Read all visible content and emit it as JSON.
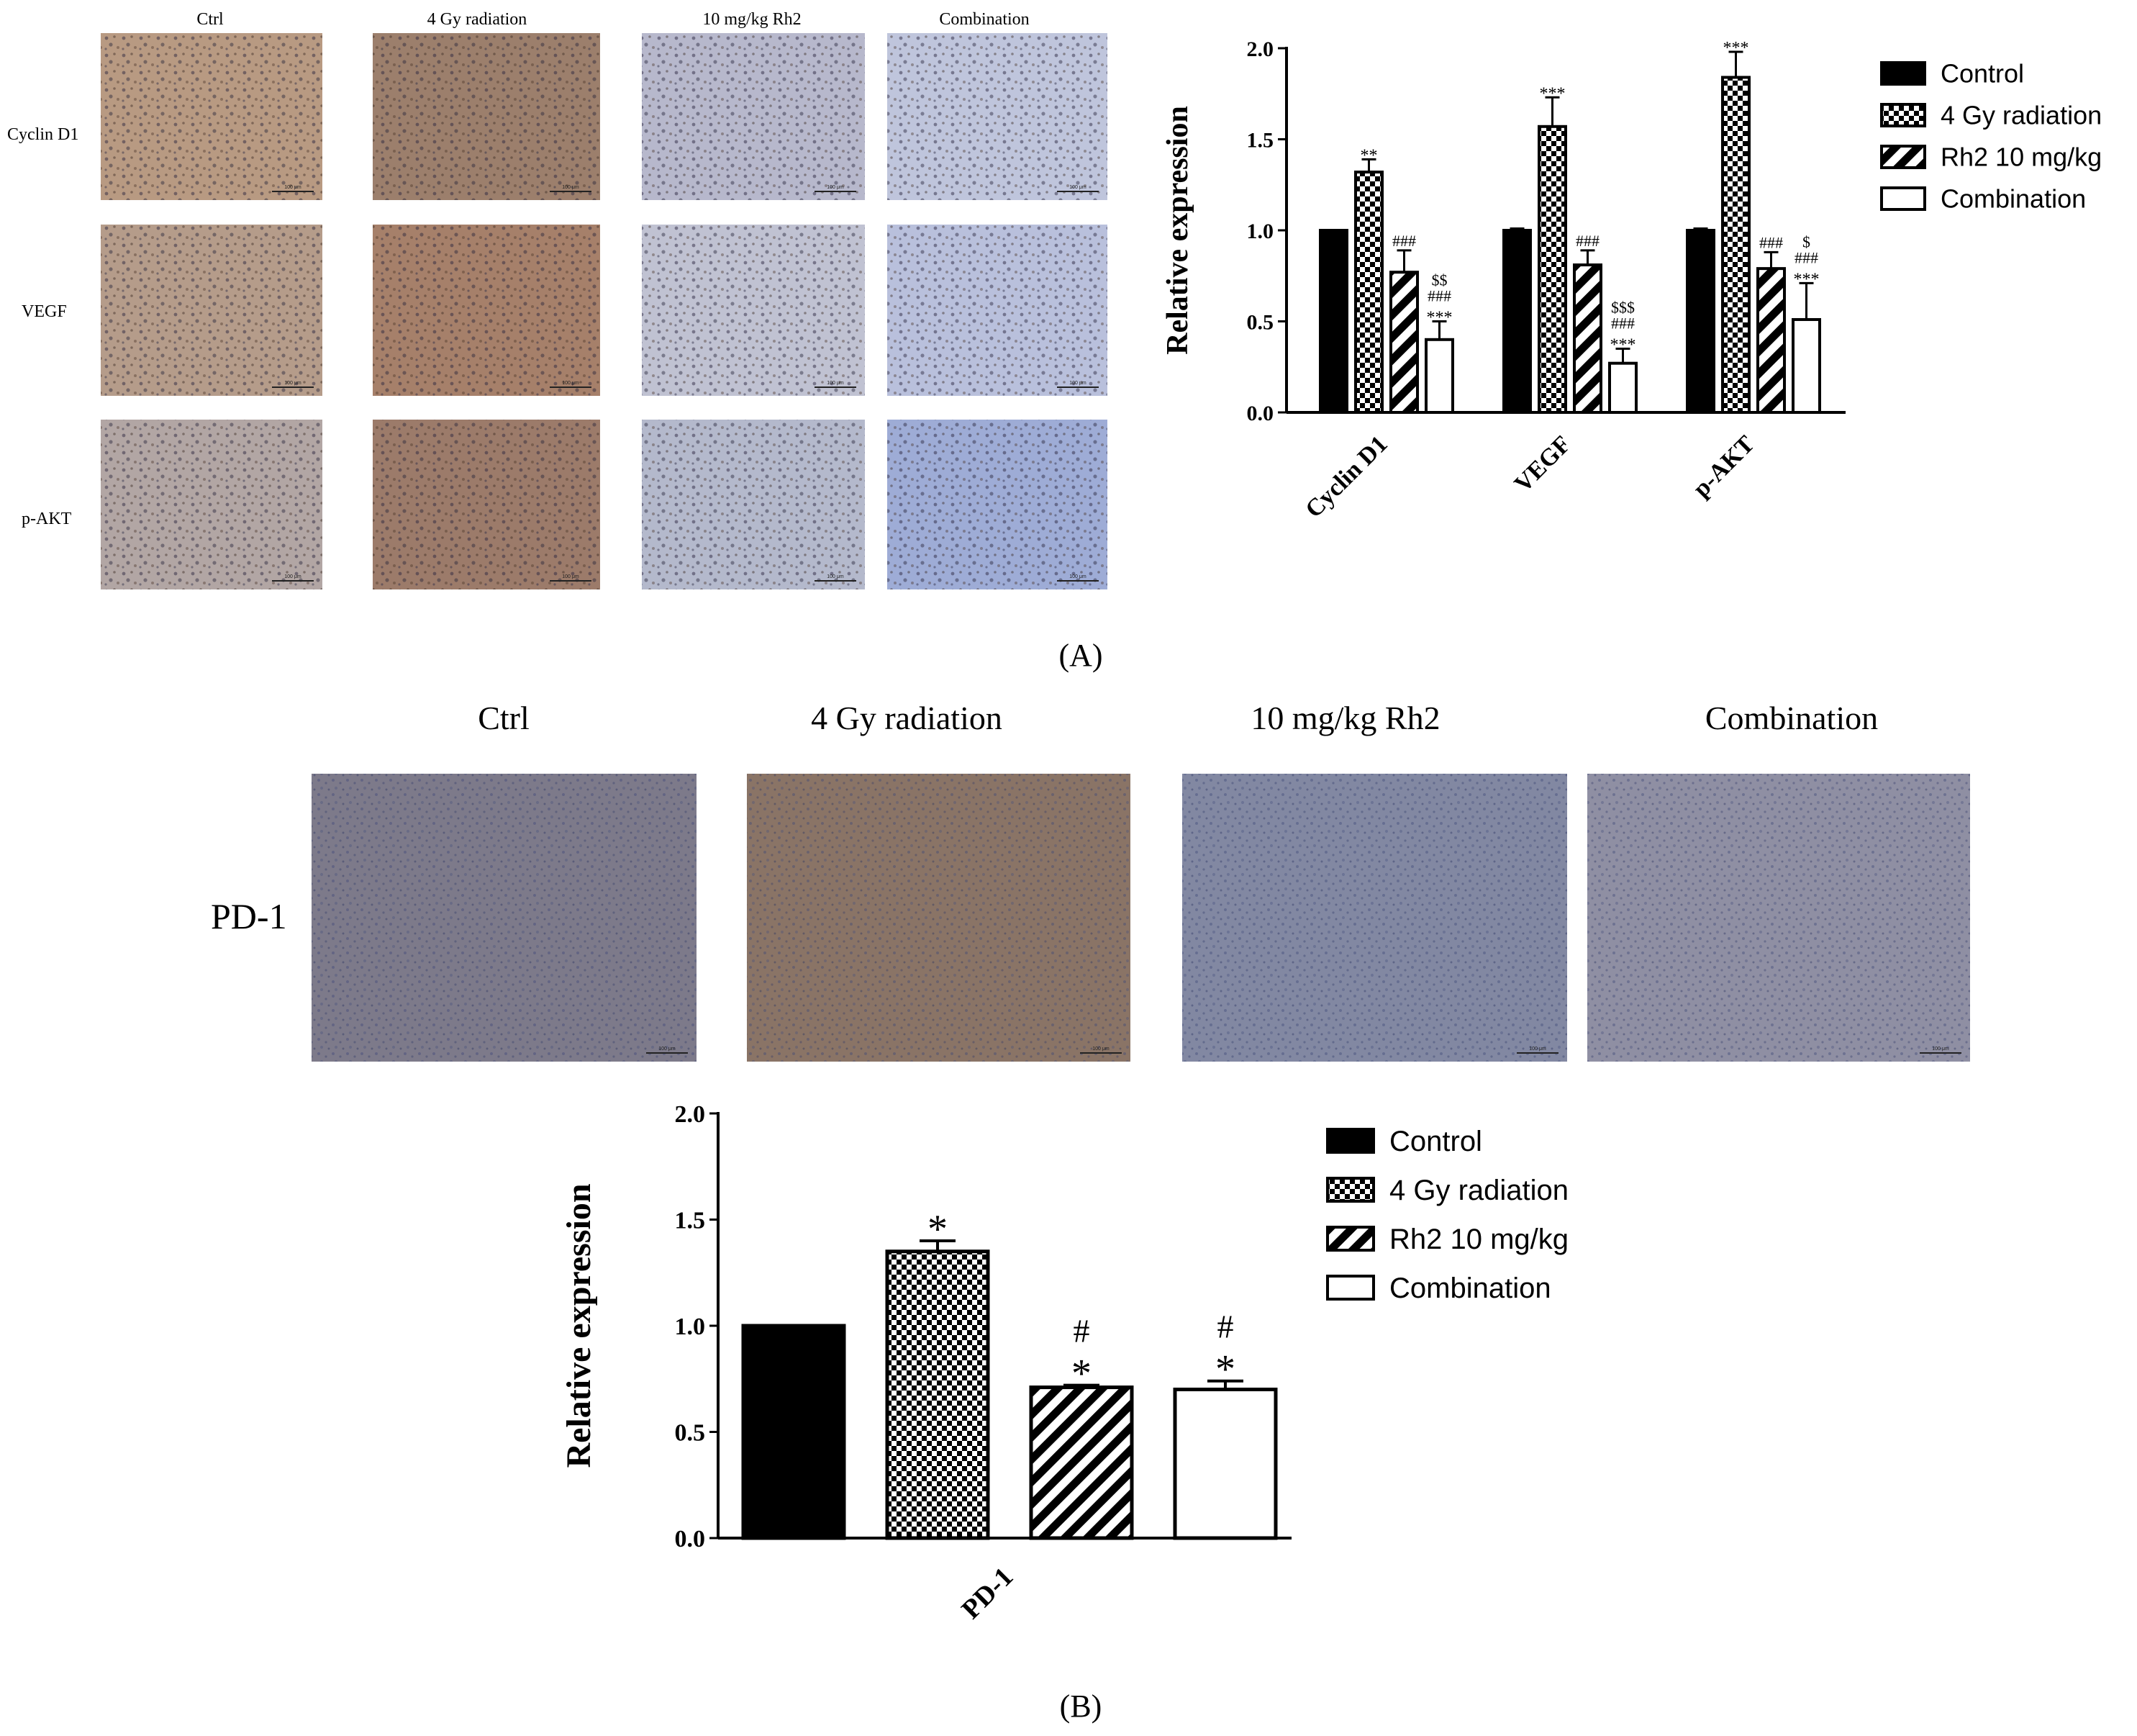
{
  "panel_a": {
    "column_headers": [
      "Ctrl",
      "4 Gy radiation",
      "10 mg/kg Rh2",
      "Combination"
    ],
    "row_labels": [
      "Cyclin D1",
      "VEGF",
      "p-AKT"
    ],
    "label": "(A)",
    "scale_bar_text": "100 μm",
    "micrograph_tones": [
      [
        "#b89a82",
        "#9c7f6c",
        "#b7b8cc",
        "#bfc5dc"
      ],
      [
        "#b59c8a",
        "#a6806a",
        "#c0c2d2",
        "#b9c0dc"
      ],
      [
        "#b2a6a4",
        "#9c7b6a",
        "#b4b9cc",
        "#9eacd6"
      ]
    ]
  },
  "panel_b": {
    "column_headers": [
      "Ctrl",
      "4 Gy radiation",
      "10 mg/kg Rh2",
      "Combination"
    ],
    "row_labels": [
      "PD-1"
    ],
    "label": "(B)",
    "scale_bar_text": "100 μm",
    "micrograph_tones": [
      [
        "#7d7a8a",
        "#8a7466",
        "#8288a2",
        "#8f8fa3"
      ]
    ]
  },
  "legend_items": [
    {
      "label": "Control",
      "pattern": "solid"
    },
    {
      "label": "4 Gy radiation",
      "pattern": "checker"
    },
    {
      "label": "Rh2 10 mg/kg",
      "pattern": "diagonal"
    },
    {
      "label": "Combination",
      "pattern": "open"
    }
  ],
  "chart_data": [
    {
      "type": "bar",
      "ylabel": "Relative expression",
      "ylim": [
        0,
        2.0
      ],
      "yticks": [
        "0.0",
        "0.5",
        "1.0",
        "1.5",
        "2.0"
      ],
      "categories": [
        "Cyclin D1",
        "VEGF",
        "p-AKT"
      ],
      "series": [
        {
          "name": "Control",
          "values": [
            1.0,
            1.0,
            1.0
          ],
          "errors": [
            0.0,
            0.01,
            0.01
          ],
          "annotations": [
            "",
            "",
            ""
          ]
        },
        {
          "name": "4 Gy radiation",
          "values": [
            1.32,
            1.57,
            1.84
          ],
          "errors": [
            0.07,
            0.16,
            0.14
          ],
          "annotations": [
            "**",
            "***",
            "***"
          ]
        },
        {
          "name": "Rh2 10 mg/kg",
          "values": [
            0.77,
            0.81,
            0.79
          ],
          "errors": [
            0.12,
            0.08,
            0.09
          ],
          "annotations": [
            "###",
            "###",
            "###"
          ]
        },
        {
          "name": "Combination",
          "values": [
            0.4,
            0.27,
            0.51
          ],
          "errors": [
            0.1,
            0.08,
            0.2
          ],
          "annotations": [
            "$$\n###\n***",
            "$$$\n###\n***",
            "$\n###\n***"
          ]
        }
      ],
      "legend": "right",
      "grid": false
    },
    {
      "type": "bar",
      "ylabel": "Relative expression",
      "ylim": [
        0,
        2.0
      ],
      "yticks": [
        "0.0",
        "0.5",
        "1.0",
        "1.5",
        "2.0"
      ],
      "categories": [
        "PD-1"
      ],
      "series": [
        {
          "name": "Control",
          "values": [
            1.0
          ],
          "errors": [
            0.0
          ],
          "annotations": [
            ""
          ]
        },
        {
          "name": "4 Gy radiation",
          "values": [
            1.35
          ],
          "errors": [
            0.05
          ],
          "annotations": [
            "*"
          ]
        },
        {
          "name": "Rh2 10 mg/kg",
          "values": [
            0.71
          ],
          "errors": [
            0.01
          ],
          "annotations": [
            "#\n*"
          ]
        },
        {
          "name": "Combination",
          "values": [
            0.7
          ],
          "errors": [
            0.04
          ],
          "annotations": [
            "#\n*"
          ]
        }
      ],
      "legend": "right",
      "grid": false
    }
  ]
}
